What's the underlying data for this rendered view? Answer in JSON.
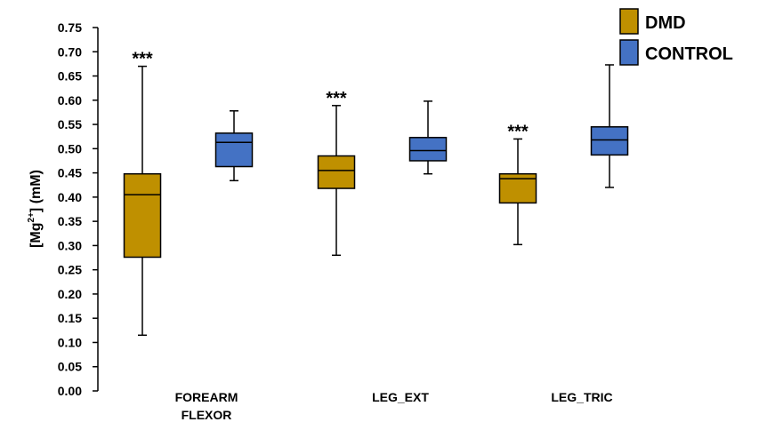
{
  "chart_data": {
    "type": "boxplot",
    "title": "",
    "xlabel": "",
    "ylabel": {
      "prefix": "[Mg",
      "superscript": "2+",
      "suffix": "] (mM)"
    },
    "ylim": [
      0,
      0.75
    ],
    "ytick_step": 0.05,
    "yticks": [
      "0.00",
      "0.05",
      "0.10",
      "0.15",
      "0.20",
      "0.25",
      "0.30",
      "0.35",
      "0.40",
      "0.45",
      "0.50",
      "0.55",
      "0.60",
      "0.65",
      "0.70",
      "0.75"
    ],
    "categories": [
      {
        "lines": [
          "FOREARM",
          "FLEXOR"
        ]
      },
      {
        "lines": [
          "LEG_EXT"
        ]
      },
      {
        "lines": [
          "LEG_TRIC"
        ]
      }
    ],
    "legend": {
      "placement": "top-right"
    },
    "series": [
      {
        "name": "DMD",
        "color": "#BF9000",
        "boxes": [
          {
            "min": 0.115,
            "q1": 0.276,
            "median": 0.405,
            "q3": 0.448,
            "max": 0.67,
            "annotation": "***"
          },
          {
            "min": 0.28,
            "q1": 0.418,
            "median": 0.455,
            "q3": 0.485,
            "max": 0.589,
            "annotation": "***"
          },
          {
            "min": 0.302,
            "q1": 0.388,
            "median": 0.438,
            "q3": 0.448,
            "max": 0.52,
            "annotation": "***"
          }
        ]
      },
      {
        "name": "CONTROL",
        "color": "#4472C4",
        "boxes": [
          {
            "min": 0.434,
            "q1": 0.463,
            "median": 0.513,
            "q3": 0.532,
            "max": 0.578,
            "annotation": ""
          },
          {
            "min": 0.448,
            "q1": 0.475,
            "median": 0.496,
            "q3": 0.523,
            "max": 0.598,
            "annotation": ""
          },
          {
            "min": 0.42,
            "q1": 0.487,
            "median": 0.518,
            "q3": 0.545,
            "max": 0.673,
            "annotation": ""
          }
        ]
      }
    ]
  }
}
